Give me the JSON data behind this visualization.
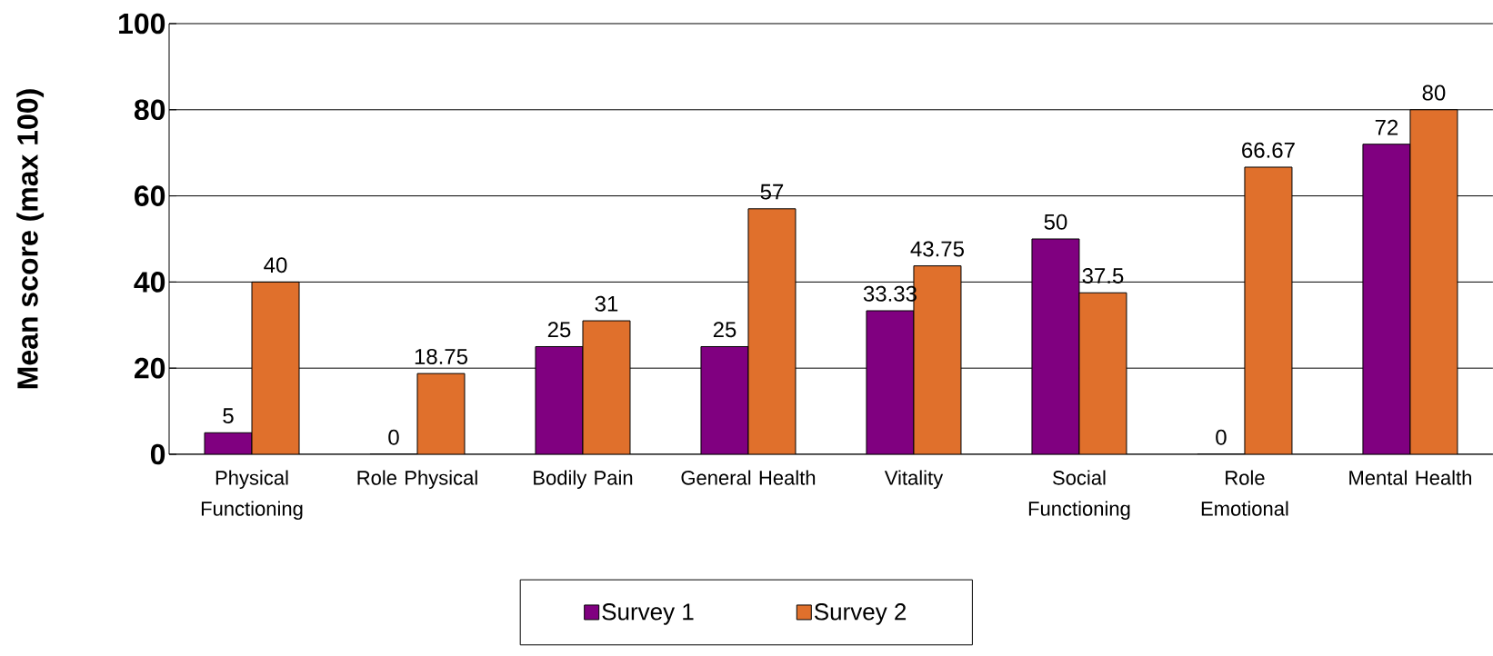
{
  "chart_data": {
    "type": "bar",
    "ylabel": "Mean score (max 100)",
    "categories": [
      "Physical Functioning",
      "Role Physical",
      "Bodily Pain",
      "General Health",
      "Vitality",
      "Social Functioning",
      "Role Emotional",
      "Mental Health"
    ],
    "series": [
      {
        "name": "Survey 1",
        "color": "#800080",
        "values": [
          5,
          0,
          25,
          25,
          33.33,
          50,
          0,
          72
        ]
      },
      {
        "name": "Survey 2",
        "color": "#e0702c",
        "values": [
          40,
          18.75,
          31,
          57,
          43.75,
          37.5,
          66.67,
          80
        ]
      }
    ],
    "ylim": [
      0,
      100
    ],
    "yticks": [
      0,
      20,
      40,
      60,
      80,
      100
    ],
    "grid": "y",
    "legend": "bottom",
    "data_labels": true
  }
}
